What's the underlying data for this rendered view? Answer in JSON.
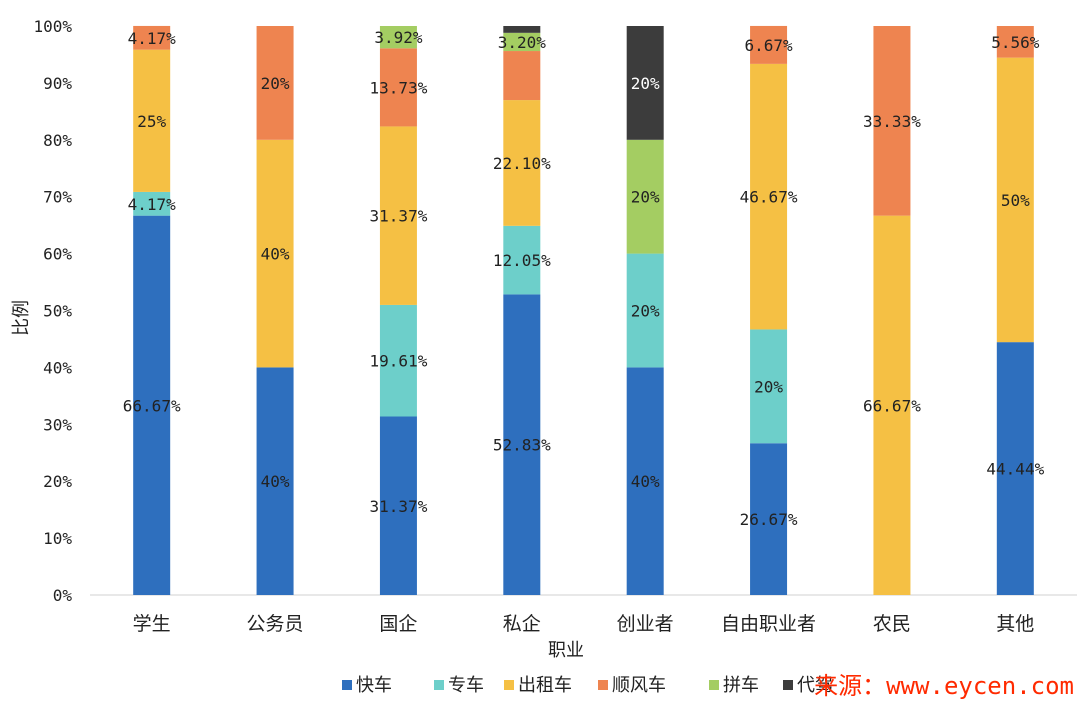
{
  "chart_data": {
    "type": "bar",
    "stacked": true,
    "percent_stacked": true,
    "title": "",
    "xlabel": "职业",
    "ylabel": "比例",
    "ylim": [
      0,
      100
    ],
    "yticks": [
      "0%",
      "10%",
      "20%",
      "30%",
      "40%",
      "50%",
      "60%",
      "70%",
      "80%",
      "90%",
      "100%"
    ],
    "categories": [
      "学生",
      "公务员",
      "国企",
      "私企",
      "创业者",
      "自由职业者",
      "农民",
      "其他"
    ],
    "series": [
      {
        "name": "快车",
        "color": "#2e6fbe",
        "values": [
          66.67,
          40,
          31.37,
          52.83,
          40,
          26.67,
          0,
          44.44
        ],
        "labels": [
          "66.67%",
          "40%",
          "31.37%",
          "52.83%",
          "40%",
          "26.67%",
          "",
          "44.44%"
        ]
      },
      {
        "name": "专车",
        "color": "#6dcfca",
        "values": [
          4.17,
          0,
          19.61,
          12.05,
          20,
          20,
          0,
          0
        ],
        "labels": [
          "4.17%",
          "",
          "19.61%",
          "12.05%",
          "20%",
          "20%",
          "",
          ""
        ]
      },
      {
        "name": "出租车",
        "color": "#f5c044",
        "values": [
          25,
          40,
          31.37,
          22.1,
          0,
          46.67,
          66.67,
          50
        ],
        "labels": [
          "25%",
          "40%",
          "31.37%",
          "22.10%",
          "",
          "46.67%",
          "66.67%",
          "50%"
        ]
      },
      {
        "name": "顺风车",
        "color": "#ee8450",
        "values": [
          4.17,
          20,
          13.73,
          8.62,
          0,
          6.67,
          33.33,
          5.56
        ],
        "labels": [
          "4.17%",
          "20%",
          "13.73%",
          "",
          "",
          "6.67%",
          "33.33%",
          "5.56%"
        ]
      },
      {
        "name": "拼车",
        "color": "#a4cd62",
        "values": [
          0,
          0,
          3.92,
          3.2,
          20,
          0,
          0,
          0
        ],
        "labels": [
          "",
          "",
          "3.92%",
          "3.20%",
          "20%",
          "",
          "",
          ""
        ]
      },
      {
        "name": "代驾",
        "color": "#3c3c3c",
        "values": [
          0,
          0,
          0,
          1.2,
          20,
          0,
          0,
          0
        ],
        "labels": [
          "",
          "",
          "",
          "",
          "20%",
          "",
          "",
          ""
        ]
      }
    ],
    "grid": false,
    "legend_position": "bottom"
  },
  "watermark": "来源：www.eycen.com"
}
